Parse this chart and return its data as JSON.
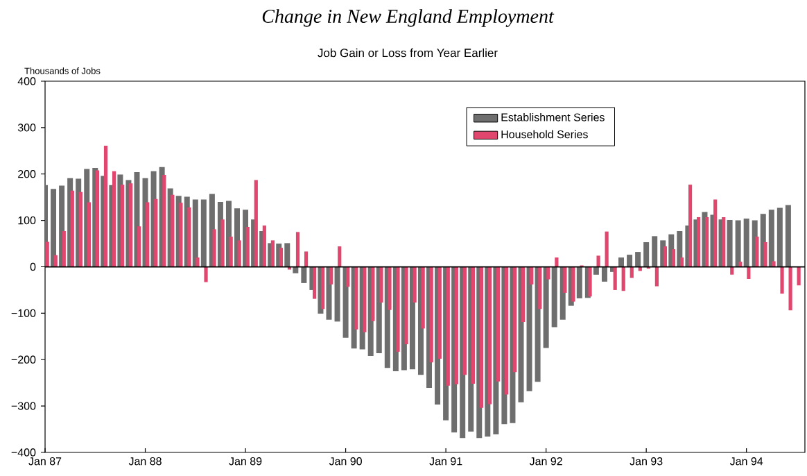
{
  "chart_data": {
    "type": "bar",
    "title": "Change in New England Employment",
    "subtitle": "Job Gain or Loss from Year Earlier",
    "ylabel": "Thousands of Jobs",
    "x": [
      "1987-01",
      "1987-02",
      "1987-03",
      "1987-04",
      "1987-05",
      "1987-06",
      "1987-07",
      "1987-08",
      "1987-09",
      "1987-10",
      "1987-11",
      "1987-12",
      "1988-01",
      "1988-02",
      "1988-03",
      "1988-04",
      "1988-05",
      "1988-06",
      "1988-07",
      "1988-08",
      "1988-09",
      "1988-10",
      "1988-11",
      "1988-12",
      "1989-01",
      "1989-02",
      "1989-03",
      "1989-04",
      "1989-05",
      "1989-06",
      "1989-07",
      "1989-08",
      "1989-09",
      "1989-10",
      "1989-11",
      "1989-12",
      "1990-01",
      "1990-02",
      "1990-03",
      "1990-04",
      "1990-05",
      "1990-06",
      "1990-07",
      "1990-08",
      "1990-09",
      "1990-10",
      "1990-11",
      "1990-12",
      "1991-01",
      "1991-02",
      "1991-03",
      "1991-04",
      "1991-05",
      "1991-06",
      "1991-07",
      "1991-08",
      "1991-09",
      "1991-10",
      "1991-11",
      "1991-12",
      "1992-01",
      "1992-02",
      "1992-03",
      "1992-04",
      "1992-05",
      "1992-06",
      "1992-07",
      "1992-08",
      "1992-09",
      "1992-10",
      "1992-11",
      "1992-12",
      "1993-01",
      "1993-02",
      "1993-03",
      "1993-04",
      "1993-05",
      "1993-06",
      "1993-07",
      "1993-08",
      "1993-09",
      "1993-10",
      "1993-11",
      "1993-12",
      "1994-01",
      "1994-02",
      "1994-03",
      "1994-04",
      "1994-05",
      "1994-06",
      "1994-07"
    ],
    "series": [
      {
        "name": "Establishment Series",
        "color": "#6e6e6e",
        "values": [
          176,
          168,
          175,
          191,
          190,
          211,
          213,
          196,
          176,
          199,
          187,
          204,
          191,
          206,
          215,
          169,
          153,
          151,
          145,
          145,
          157,
          140,
          142,
          126,
          123,
          102,
          77,
          51,
          50,
          51,
          -14,
          -35,
          -50,
          -101,
          -114,
          -118,
          -153,
          -176,
          -178,
          -192,
          -186,
          -218,
          -225,
          -223,
          -221,
          -233,
          -261,
          -297,
          -331,
          -357,
          -369,
          -355,
          -369,
          -366,
          -361,
          -339,
          -337,
          -292,
          -268,
          -248,
          -175,
          -130,
          -114,
          -84,
          -68,
          -67,
          -17,
          -32,
          -11,
          20,
          26,
          32,
          53,
          66,
          57,
          70,
          77,
          89,
          102,
          118,
          112,
          102,
          101,
          100,
          104,
          100,
          114,
          123,
          127,
          133,
          null
        ]
      },
      {
        "name": "Household Series",
        "color": "#e0466e",
        "values": [
          54,
          25,
          77,
          164,
          161,
          139,
          208,
          261,
          206,
          177,
          180,
          87,
          139,
          146,
          198,
          155,
          138,
          128,
          20,
          -33,
          81,
          102,
          65,
          57,
          86,
          187,
          89,
          57,
          41,
          -6,
          75,
          33,
          -69,
          -91,
          -38,
          44,
          -43,
          -135,
          -141,
          -117,
          -77,
          -93,
          -183,
          -167,
          -77,
          -133,
          -206,
          -198,
          -256,
          -253,
          -233,
          -252,
          -304,
          -296,
          -247,
          -275,
          -227,
          -119,
          -38,
          -91,
          -27,
          20,
          -56,
          -75,
          3,
          -64,
          24,
          76,
          -50,
          -52,
          -24,
          -9,
          -4,
          -42,
          44,
          38,
          20,
          177,
          107,
          107,
          145,
          107,
          -17,
          11,
          -26,
          65,
          53,
          12,
          -58,
          -94,
          -40
        ]
      }
    ],
    "xlim": [
      "1987-01",
      "1994-08"
    ],
    "xticks": [
      {
        "value": "1987-01",
        "label": "Jan 87"
      },
      {
        "value": "1988-01",
        "label": "Jan 88"
      },
      {
        "value": "1989-01",
        "label": "Jan 89"
      },
      {
        "value": "1990-01",
        "label": "Jan 90"
      },
      {
        "value": "1991-01",
        "label": "Jan 91"
      },
      {
        "value": "1992-01",
        "label": "Jan 92"
      },
      {
        "value": "1993-01",
        "label": "Jan 93"
      },
      {
        "value": "1994-01",
        "label": "Jan 94"
      }
    ],
    "ylim": [
      -400,
      400
    ],
    "yticks": [
      {
        "value": -400,
        "label": "−400"
      },
      {
        "value": -300,
        "label": "−300"
      },
      {
        "value": -200,
        "label": "−200"
      },
      {
        "value": -100,
        "label": "−100"
      },
      0,
      100,
      200,
      300,
      400
    ],
    "ref_lines": [
      {
        "axis": "y",
        "value": 0,
        "color": "#000000"
      }
    ],
    "legend": "top right",
    "grid": false
  }
}
